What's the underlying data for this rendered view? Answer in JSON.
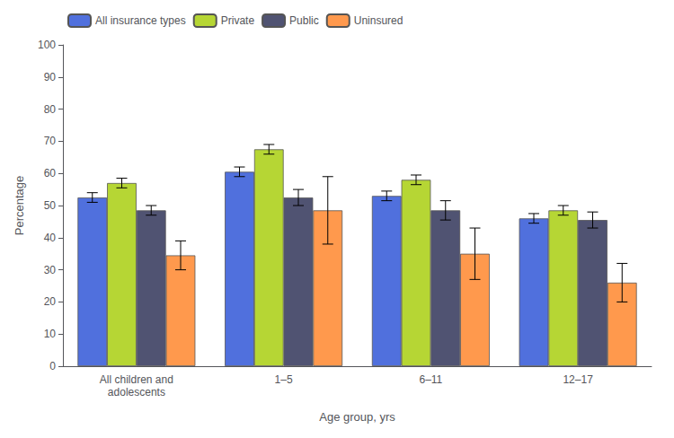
{
  "chart_data": {
    "type": "bar",
    "xlabel": "Age group, yrs",
    "ylabel": "Percentage",
    "categories": [
      "All children and\nadolescents",
      "1–5",
      "6–11",
      "12–17"
    ],
    "series": [
      {
        "name": "All insurance types",
        "values": [
          52.5,
          60.5,
          53.0,
          46.0
        ],
        "errors_low": [
          1.5,
          1.5,
          1.5,
          1.5
        ],
        "errors_high": [
          1.5,
          1.5,
          1.5,
          1.5
        ]
      },
      {
        "name": "Private",
        "values": [
          57.0,
          67.5,
          58.0,
          48.5
        ],
        "errors_low": [
          1.5,
          1.5,
          1.5,
          1.5
        ],
        "errors_high": [
          1.5,
          1.5,
          1.5,
          1.5
        ]
      },
      {
        "name": "Public",
        "values": [
          48.5,
          52.5,
          48.5,
          45.5
        ],
        "errors_low": [
          1.5,
          2.5,
          3.0,
          2.5
        ],
        "errors_high": [
          1.5,
          2.5,
          3.0,
          2.5
        ]
      },
      {
        "name": "Uninsured",
        "values": [
          34.5,
          48.5,
          35.0,
          26.0
        ],
        "errors_low": [
          4.5,
          10.5,
          8.0,
          6.0
        ],
        "errors_high": [
          4.5,
          10.5,
          8.0,
          6.0
        ]
      }
    ],
    "ylim": [
      0,
      100
    ],
    "yticks": [
      0,
      10,
      20,
      30,
      40,
      50,
      60,
      70,
      80,
      90,
      100
    ],
    "grid": false,
    "legend": "upper left"
  }
}
